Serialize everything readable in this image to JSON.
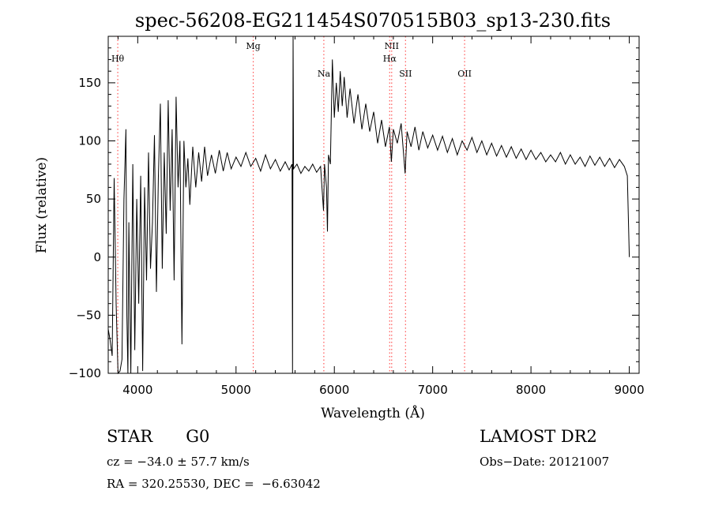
{
  "chart_data": {
    "type": "line",
    "title": "spec-56208-EG211454S070515B03_sp13-230.fits",
    "xlabel": "Wavelength (Å)",
    "ylabel": "Flux (relative)",
    "xlim": [
      3700,
      9100
    ],
    "ylim": [
      -100,
      190
    ],
    "xticks": [
      4000,
      5000,
      6000,
      7000,
      8000,
      9000
    ],
    "yticks": [
      -100,
      -50,
      0,
      50,
      100,
      150
    ],
    "grid": false,
    "line_color": "#000000",
    "marker_color": "#ff5555",
    "lines": [
      {
        "label": "Hθ",
        "wavelength": 3797
      },
      {
        "label": "Mg",
        "wavelength": 5175
      },
      {
        "label": "Na",
        "wavelength": 5893
      },
      {
        "label": "NII",
        "wavelength": 6583
      },
      {
        "label": "Hα",
        "wavelength": 6563
      },
      {
        "label": "SII",
        "wavelength": 6724
      },
      {
        "label": "OII",
        "wavelength": 7325
      }
    ],
    "spectrum": [
      [
        3700,
        -62
      ],
      [
        3720,
        -72
      ],
      [
        3740,
        -85
      ],
      [
        3760,
        68
      ],
      [
        3780,
        -40
      ],
      [
        3800,
        -100
      ],
      [
        3820,
        -98
      ],
      [
        3840,
        -88
      ],
      [
        3860,
        50
      ],
      [
        3880,
        110
      ],
      [
        3890,
        -50
      ],
      [
        3900,
        -100
      ],
      [
        3910,
        30
      ],
      [
        3930,
        -100
      ],
      [
        3950,
        80
      ],
      [
        3970,
        -80
      ],
      [
        3990,
        50
      ],
      [
        4010,
        -40
      ],
      [
        4030,
        70
      ],
      [
        4050,
        -98
      ],
      [
        4070,
        60
      ],
      [
        4090,
        -20
      ],
      [
        4110,
        90
      ],
      [
        4130,
        -10
      ],
      [
        4150,
        30
      ],
      [
        4170,
        105
      ],
      [
        4190,
        -30
      ],
      [
        4210,
        70
      ],
      [
        4230,
        132
      ],
      [
        4250,
        -10
      ],
      [
        4270,
        90
      ],
      [
        4290,
        20
      ],
      [
        4310,
        135
      ],
      [
        4330,
        40
      ],
      [
        4350,
        110
      ],
      [
        4370,
        -20
      ],
      [
        4390,
        138
      ],
      [
        4410,
        60
      ],
      [
        4430,
        100
      ],
      [
        4450,
        -75
      ],
      [
        4470,
        100
      ],
      [
        4490,
        60
      ],
      [
        4510,
        85
      ],
      [
        4530,
        45
      ],
      [
        4560,
        95
      ],
      [
        4590,
        60
      ],
      [
        4620,
        90
      ],
      [
        4650,
        65
      ],
      [
        4680,
        95
      ],
      [
        4710,
        70
      ],
      [
        4750,
        88
      ],
      [
        4790,
        72
      ],
      [
        4830,
        92
      ],
      [
        4870,
        74
      ],
      [
        4910,
        90
      ],
      [
        4950,
        76
      ],
      [
        5000,
        86
      ],
      [
        5050,
        78
      ],
      [
        5100,
        90
      ],
      [
        5150,
        78
      ],
      [
        5200,
        85
      ],
      [
        5250,
        74
      ],
      [
        5300,
        88
      ],
      [
        5350,
        76
      ],
      [
        5400,
        84
      ],
      [
        5450,
        74
      ],
      [
        5500,
        82
      ],
      [
        5540,
        75
      ],
      [
        5570,
        80
      ],
      [
        5575,
        -100
      ],
      [
        5580,
        190
      ],
      [
        5585,
        76
      ],
      [
        5620,
        80
      ],
      [
        5660,
        72
      ],
      [
        5700,
        78
      ],
      [
        5740,
        74
      ],
      [
        5780,
        80
      ],
      [
        5820,
        73
      ],
      [
        5860,
        78
      ],
      [
        5890,
        40
      ],
      [
        5900,
        80
      ],
      [
        5920,
        60
      ],
      [
        5930,
        22
      ],
      [
        5940,
        88
      ],
      [
        5960,
        80
      ],
      [
        5980,
        170
      ],
      [
        6000,
        120
      ],
      [
        6020,
        150
      ],
      [
        6040,
        125
      ],
      [
        6060,
        160
      ],
      [
        6080,
        130
      ],
      [
        6100,
        155
      ],
      [
        6130,
        120
      ],
      [
        6160,
        145
      ],
      [
        6200,
        115
      ],
      [
        6240,
        140
      ],
      [
        6280,
        110
      ],
      [
        6320,
        132
      ],
      [
        6360,
        108
      ],
      [
        6400,
        125
      ],
      [
        6440,
        98
      ],
      [
        6480,
        118
      ],
      [
        6520,
        95
      ],
      [
        6560,
        112
      ],
      [
        6580,
        82
      ],
      [
        6600,
        110
      ],
      [
        6640,
        98
      ],
      [
        6680,
        115
      ],
      [
        6720,
        72
      ],
      [
        6740,
        108
      ],
      [
        6780,
        95
      ],
      [
        6820,
        112
      ],
      [
        6860,
        92
      ],
      [
        6900,
        108
      ],
      [
        6950,
        94
      ],
      [
        7000,
        105
      ],
      [
        7050,
        92
      ],
      [
        7100,
        104
      ],
      [
        7150,
        90
      ],
      [
        7200,
        102
      ],
      [
        7250,
        88
      ],
      [
        7300,
        100
      ],
      [
        7350,
        92
      ],
      [
        7400,
        103
      ],
      [
        7450,
        90
      ],
      [
        7500,
        100
      ],
      [
        7550,
        88
      ],
      [
        7600,
        98
      ],
      [
        7650,
        87
      ],
      [
        7700,
        96
      ],
      [
        7750,
        86
      ],
      [
        7800,
        95
      ],
      [
        7850,
        85
      ],
      [
        7900,
        93
      ],
      [
        7950,
        84
      ],
      [
        8000,
        92
      ],
      [
        8050,
        84
      ],
      [
        8100,
        90
      ],
      [
        8150,
        82
      ],
      [
        8200,
        88
      ],
      [
        8250,
        82
      ],
      [
        8300,
        90
      ],
      [
        8350,
        80
      ],
      [
        8400,
        88
      ],
      [
        8450,
        80
      ],
      [
        8500,
        86
      ],
      [
        8550,
        78
      ],
      [
        8600,
        87
      ],
      [
        8650,
        79
      ],
      [
        8700,
        86
      ],
      [
        8750,
        78
      ],
      [
        8800,
        85
      ],
      [
        8850,
        77
      ],
      [
        8900,
        84
      ],
      [
        8950,
        78
      ],
      [
        8980,
        70
      ],
      [
        9000,
        0
      ]
    ]
  },
  "info": {
    "object_class": "STAR",
    "subclass": "G0",
    "cz": "cz = −34.0 ± 57.7 km/s",
    "coords": "RA = 320.25530, DEC =  −6.63042",
    "survey": "LAMOST DR2",
    "obs_date": "Obs−Date: 20121007"
  }
}
